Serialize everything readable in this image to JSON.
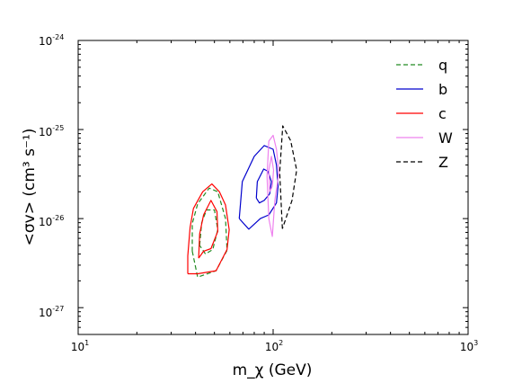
{
  "chart_data": {
    "type": "line",
    "xscale": "log",
    "yscale": "log",
    "xlim": [
      10,
      1000
    ],
    "ylim": [
      5e-28,
      1e-24
    ],
    "xlabel": "m_χ (GeV)",
    "ylabel": "<σv> (cm³ s⁻¹)",
    "x_ticks": [
      {
        "base": "10",
        "exp": "1",
        "value": 10
      },
      {
        "base": "10",
        "exp": "2",
        "value": 100
      },
      {
        "base": "10",
        "exp": "3",
        "value": 1000
      }
    ],
    "y_ticks": [
      {
        "base": "10",
        "exp": "-24",
        "value": 1e-24
      },
      {
        "base": "10",
        "exp": "-25",
        "value": 1e-25
      },
      {
        "base": "10",
        "exp": "-26",
        "value": 1e-26
      },
      {
        "base": "10",
        "exp": "-27",
        "value": 1e-27
      }
    ],
    "legend_position": "top-right",
    "series": [
      {
        "name": "q",
        "color": "#228b22",
        "dash": "dashed",
        "contours": [
          {
            "level": "outer",
            "points": [
              [
                38.5,
                4.3e-27
              ],
              [
                38.5,
                8.8e-27
              ],
              [
                41,
                1.46e-26
              ],
              [
                47,
                2.2e-26
              ],
              [
                52,
                2e-26
              ],
              [
                57,
                1e-26
              ],
              [
                58,
                4.4e-27
              ],
              [
                51,
                2.6e-27
              ],
              [
                41,
                2.2e-27
              ],
              [
                38.5,
                4.3e-27
              ]
            ]
          },
          {
            "level": "inner",
            "points": [
              [
                42,
                5e-27
              ],
              [
                43,
                9e-27
              ],
              [
                45.5,
                1.25e-26
              ],
              [
                50,
                1.25e-26
              ],
              [
                52,
                7.5e-27
              ],
              [
                49,
                4.5e-27
              ],
              [
                45,
                4e-27
              ],
              [
                42,
                5e-27
              ]
            ]
          }
        ]
      },
      {
        "name": "b",
        "color": "#0000cd",
        "dash": "solid",
        "contours": [
          {
            "level": "outer",
            "points": [
              [
                67,
                1e-26
              ],
              [
                69.5,
                2.6e-26
              ],
              [
                80,
                5e-26
              ],
              [
                90,
                6.6e-26
              ],
              [
                100,
                6e-26
              ],
              [
                104,
                4e-26
              ],
              [
                106,
                2.3e-26
              ],
              [
                104,
                1.5e-26
              ],
              [
                95,
                1.1e-26
              ],
              [
                86,
                1e-26
              ],
              [
                75,
                7.6e-27
              ],
              [
                67,
                1e-26
              ]
            ]
          },
          {
            "level": "inner",
            "points": [
              [
                82,
                1.7e-26
              ],
              [
                83,
                2.6e-26
              ],
              [
                89.5,
                3.6e-26
              ],
              [
                94,
                3.4e-26
              ],
              [
                98,
                2.6e-26
              ],
              [
                96,
                1.9e-26
              ],
              [
                90,
                1.6e-26
              ],
              [
                85,
                1.5e-26
              ],
              [
                82,
                1.7e-26
              ]
            ]
          }
        ]
      },
      {
        "name": "c",
        "color": "#ff0000",
        "dash": "solid",
        "contours": [
          {
            "level": "outer",
            "points": [
              [
                36.5,
                2.4e-27
              ],
              [
                36.5,
                3.8e-27
              ],
              [
                37.5,
                8e-27
              ],
              [
                39,
                1.3e-26
              ],
              [
                43.5,
                2e-26
              ],
              [
                48.5,
                2.45e-26
              ],
              [
                53,
                2e-26
              ],
              [
                57,
                1.42e-26
              ],
              [
                59.5,
                7.5e-27
              ],
              [
                58,
                4.5e-27
              ],
              [
                51,
                2.6e-27
              ],
              [
                41,
                2.4e-27
              ],
              [
                36.5,
                2.4e-27
              ]
            ]
          },
          {
            "level": "inner",
            "points": [
              [
                41.5,
                3.6e-27
              ],
              [
                42,
                6.7e-27
              ],
              [
                44,
                1.1e-26
              ],
              [
                48,
                1.6e-26
              ],
              [
                51.5,
                1.2e-26
              ],
              [
                52,
                7.2e-27
              ],
              [
                48,
                4.6e-27
              ],
              [
                44,
                4.3e-27
              ],
              [
                41.5,
                3.6e-27
              ]
            ]
          }
        ]
      },
      {
        "name": "W",
        "color": "#ee82ee",
        "dash": "solid",
        "contours": [
          {
            "level": "outer",
            "points": [
              [
                95,
                1e-26
              ],
              [
                93,
                3e-26
              ],
              [
                95,
                7.4e-26
              ],
              [
                100,
                8.6e-26
              ],
              [
                104,
                6e-26
              ],
              [
                107,
                3.3e-26
              ],
              [
                102,
                1.6e-26
              ],
              [
                99,
                6.3e-27
              ],
              [
                95,
                1e-26
              ]
            ]
          },
          {
            "level": "inner",
            "points": [
              [
                96,
                2e-26
              ],
              [
                95,
                3.5e-26
              ],
              [
                98,
                5e-26
              ],
              [
                100.5,
                3.5e-26
              ],
              [
                99,
                2.3e-26
              ],
              [
                96,
                2e-26
              ]
            ]
          }
        ]
      },
      {
        "name": "Z",
        "color": "#000000",
        "dash": "dashed",
        "contours": [
          {
            "level": "outer",
            "points": [
              [
                111.5,
                7.7e-27
              ],
              [
                108,
                3.3e-26
              ],
              [
                112,
                1.1e-25
              ],
              [
                123,
                7.5e-26
              ],
              [
                132,
                3.5e-26
              ],
              [
                125,
                1.6e-26
              ],
              [
                111.5,
                7.7e-27
              ]
            ]
          }
        ]
      }
    ]
  }
}
